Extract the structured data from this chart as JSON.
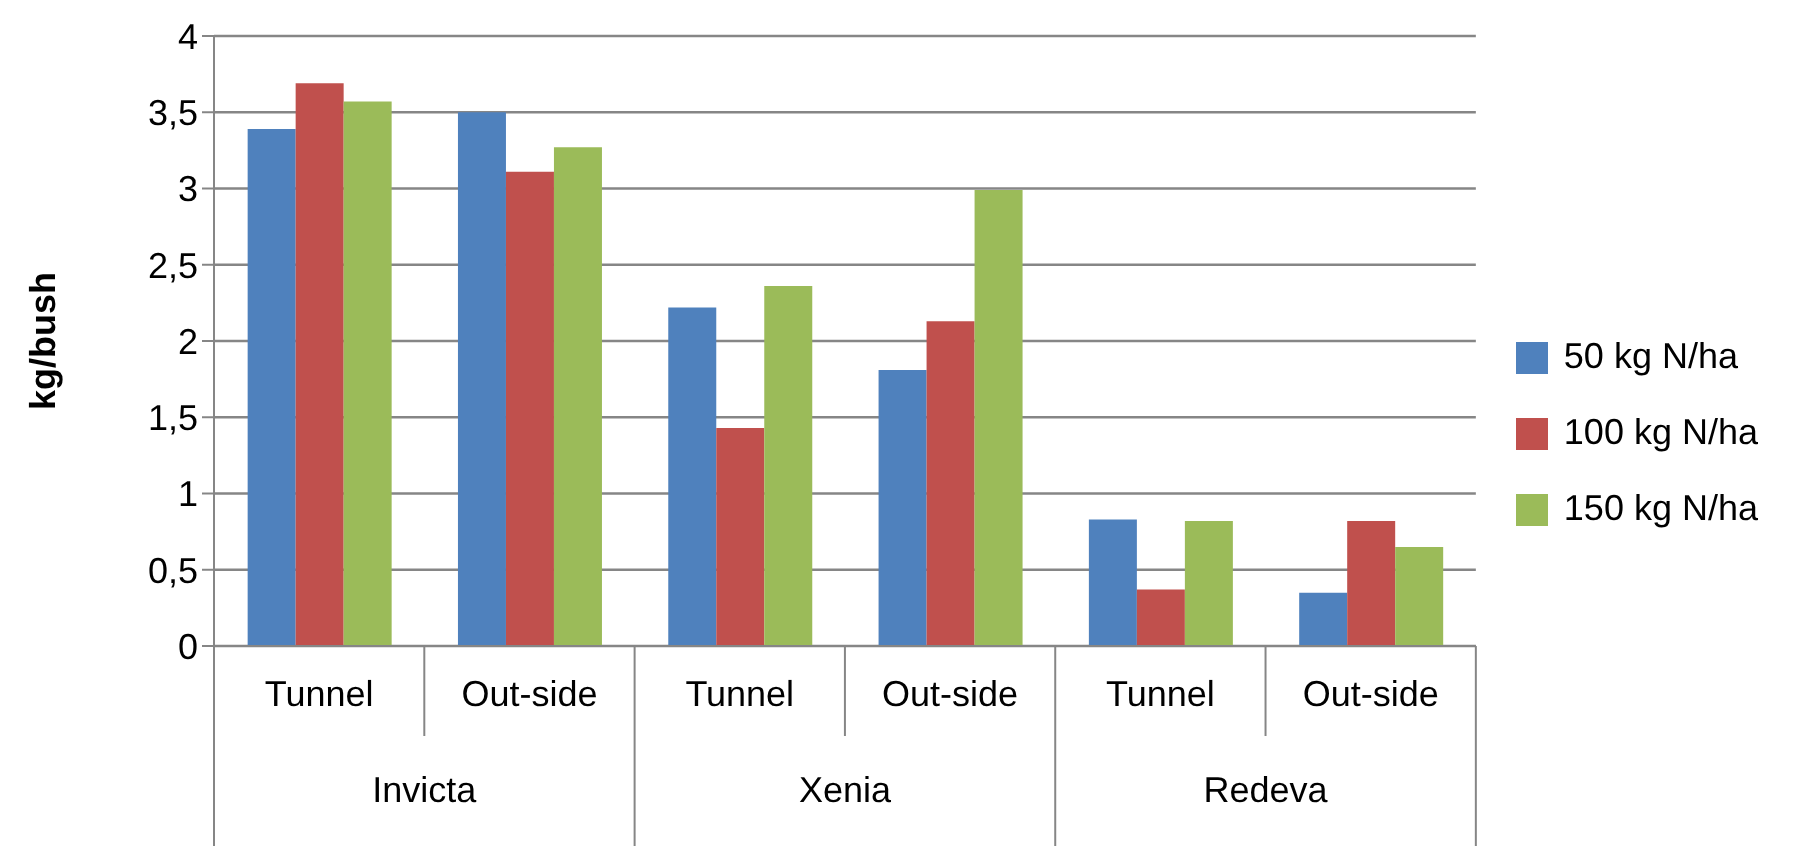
{
  "chart_data": {
    "type": "bar",
    "ylabel": "kg/bush",
    "categories": [
      "Tunnel",
      "Out-side",
      "Tunnel",
      "Out-side",
      "Tunnel",
      "Out-side"
    ],
    "annotations": [
      "Invicta",
      "Xenia",
      "Redeva"
    ],
    "series": [
      {
        "name": "50 kg N/ha",
        "color": "#4f81bd",
        "values": [
          3.39,
          3.5,
          2.22,
          1.81,
          0.83,
          0.35
        ]
      },
      {
        "name": "100 kg N/ha",
        "color": "#c0504d",
        "values": [
          3.69,
          3.11,
          1.43,
          2.13,
          0.37,
          0.82
        ]
      },
      {
        "name": "150 kg N/ha",
        "color": "#9bbb59",
        "values": [
          3.57,
          3.27,
          2.36,
          2.99,
          0.82,
          0.65
        ]
      }
    ],
    "ylim": [
      0,
      4
    ],
    "yticks": [
      0,
      {
        "value": 0.5,
        "label": "0,5"
      },
      1,
      {
        "value": 1.5,
        "label": "1,5"
      },
      2,
      {
        "value": 2.5,
        "label": "2,5"
      },
      3,
      {
        "value": 3.5,
        "label": "3,5"
      },
      4
    ],
    "grid": "y",
    "legend": "right"
  }
}
